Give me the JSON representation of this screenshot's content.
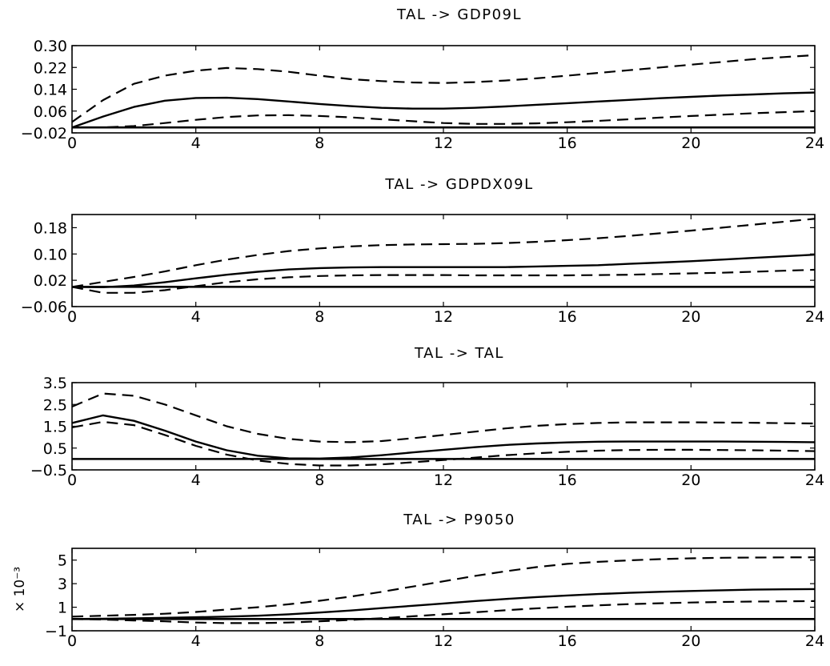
{
  "chart_data": [
    {
      "type": "line",
      "title": "TAL -> GDP09L",
      "x": [
        0,
        1,
        2,
        3,
        4,
        5,
        6,
        7,
        8,
        9,
        10,
        11,
        12,
        13,
        14,
        15,
        16,
        17,
        18,
        19,
        20,
        21,
        22,
        23,
        24
      ],
      "xticks": [
        0,
        4,
        8,
        12,
        16,
        20,
        24
      ],
      "xticklabels": [
        "0",
        "4",
        "8",
        "12",
        "16",
        "20",
        "24"
      ],
      "xlim": [
        0,
        24
      ],
      "yticks": [
        -0.02,
        0.06,
        0.14,
        0.22,
        0.3
      ],
      "yticklabels": [
        "−0.02",
        "0.06",
        "0.14",
        "0.22",
        "0.30"
      ],
      "ylim": [
        -0.02,
        0.3
      ],
      "zero_line": 0,
      "scale_label": "",
      "series": [
        {
          "style": "solid",
          "values": [
            0.0,
            0.04,
            0.075,
            0.098,
            0.108,
            0.109,
            0.104,
            0.095,
            0.086,
            0.078,
            0.072,
            0.069,
            0.069,
            0.072,
            0.077,
            0.083,
            0.089,
            0.095,
            0.101,
            0.107,
            0.112,
            0.117,
            0.121,
            0.125,
            0.128
          ]
        },
        {
          "style": "dashed",
          "values": [
            0.02,
            0.1,
            0.16,
            0.19,
            0.208,
            0.218,
            0.214,
            0.204,
            0.19,
            0.177,
            0.17,
            0.165,
            0.163,
            0.166,
            0.172,
            0.18,
            0.19,
            0.2,
            0.21,
            0.22,
            0.23,
            0.24,
            0.25,
            0.258,
            0.265
          ]
        },
        {
          "style": "dashed",
          "values": [
            0.0,
            0.0,
            0.005,
            0.016,
            0.028,
            0.038,
            0.044,
            0.045,
            0.042,
            0.037,
            0.03,
            0.023,
            0.016,
            0.013,
            0.013,
            0.015,
            0.019,
            0.024,
            0.03,
            0.036,
            0.042,
            0.047,
            0.052,
            0.056,
            0.06
          ]
        }
      ]
    },
    {
      "type": "line",
      "title": "TAL -> GDPDX09L",
      "x": [
        0,
        1,
        2,
        3,
        4,
        5,
        6,
        7,
        8,
        9,
        10,
        11,
        12,
        13,
        14,
        15,
        16,
        17,
        18,
        19,
        20,
        21,
        22,
        23,
        24
      ],
      "xticks": [
        0,
        4,
        8,
        12,
        16,
        20,
        24
      ],
      "xticklabels": [
        "0",
        "4",
        "8",
        "12",
        "16",
        "20",
        "24"
      ],
      "xlim": [
        0,
        24
      ],
      "yticks": [
        -0.06,
        0.02,
        0.1,
        0.18
      ],
      "yticklabels": [
        "−0.06",
        "0.02",
        "0.10",
        "0.18"
      ],
      "ylim": [
        -0.06,
        0.22
      ],
      "zero_line": 0,
      "scale_label": "",
      "series": [
        {
          "style": "solid",
          "values": [
            0.0,
            -0.001,
            0.004,
            0.014,
            0.026,
            0.037,
            0.046,
            0.053,
            0.057,
            0.059,
            0.06,
            0.06,
            0.06,
            0.06,
            0.06,
            0.062,
            0.064,
            0.066,
            0.07,
            0.074,
            0.078,
            0.083,
            0.088,
            0.093,
            0.098
          ]
        },
        {
          "style": "dashed",
          "values": [
            0.0,
            0.015,
            0.03,
            0.047,
            0.066,
            0.083,
            0.097,
            0.109,
            0.117,
            0.123,
            0.127,
            0.129,
            0.13,
            0.131,
            0.133,
            0.137,
            0.142,
            0.148,
            0.155,
            0.163,
            0.171,
            0.18,
            0.189,
            0.198,
            0.207
          ]
        },
        {
          "style": "dashed",
          "values": [
            0.0,
            -0.018,
            -0.018,
            -0.01,
            0.002,
            0.014,
            0.023,
            0.029,
            0.033,
            0.035,
            0.036,
            0.036,
            0.036,
            0.035,
            0.035,
            0.035,
            0.035,
            0.036,
            0.037,
            0.039,
            0.041,
            0.043,
            0.046,
            0.049,
            0.052
          ]
        }
      ]
    },
    {
      "type": "line",
      "title": "TAL -> TAL",
      "x": [
        0,
        1,
        2,
        3,
        4,
        5,
        6,
        7,
        8,
        9,
        10,
        11,
        12,
        13,
        14,
        15,
        16,
        17,
        18,
        19,
        20,
        21,
        22,
        23,
        24
      ],
      "xticks": [
        0,
        4,
        8,
        12,
        16,
        20,
        24
      ],
      "xticklabels": [
        "0",
        "4",
        "8",
        "12",
        "16",
        "20",
        "24"
      ],
      "xlim": [
        0,
        24
      ],
      "yticks": [
        -0.5,
        0.5,
        1.5,
        2.5,
        3.5
      ],
      "yticklabels": [
        "−0.5",
        "0.5",
        "1.5",
        "2.5",
        "3.5"
      ],
      "ylim": [
        -0.5,
        3.5
      ],
      "zero_line": 0,
      "scale_label": "",
      "series": [
        {
          "style": "solid",
          "values": [
            1.65,
            2.0,
            1.75,
            1.3,
            0.8,
            0.4,
            0.15,
            0.03,
            0.02,
            0.07,
            0.17,
            0.3,
            0.42,
            0.54,
            0.64,
            0.71,
            0.76,
            0.79,
            0.8,
            0.8,
            0.8,
            0.8,
            0.79,
            0.78,
            0.77
          ]
        },
        {
          "style": "dashed",
          "values": [
            2.4,
            3.0,
            2.9,
            2.5,
            2.0,
            1.5,
            1.15,
            0.92,
            0.8,
            0.77,
            0.82,
            0.95,
            1.1,
            1.25,
            1.4,
            1.52,
            1.6,
            1.65,
            1.68,
            1.68,
            1.68,
            1.67,
            1.66,
            1.64,
            1.63
          ]
        },
        {
          "style": "dashed",
          "values": [
            1.45,
            1.7,
            1.55,
            1.1,
            0.6,
            0.2,
            -0.07,
            -0.23,
            -0.3,
            -0.3,
            -0.25,
            -0.15,
            -0.05,
            0.06,
            0.17,
            0.26,
            0.33,
            0.38,
            0.41,
            0.42,
            0.42,
            0.41,
            0.4,
            0.38,
            0.36
          ]
        }
      ]
    },
    {
      "type": "line",
      "title": "TAL -> P9050",
      "x": [
        0,
        1,
        2,
        3,
        4,
        5,
        6,
        7,
        8,
        9,
        10,
        11,
        12,
        13,
        14,
        15,
        16,
        17,
        18,
        19,
        20,
        21,
        22,
        23,
        24
      ],
      "xticks": [
        0,
        4,
        8,
        12,
        16,
        20,
        24
      ],
      "xticklabels": [
        "0",
        "4",
        "8",
        "12",
        "16",
        "20",
        "24"
      ],
      "xlim": [
        0,
        24
      ],
      "yticks": [
        -1,
        1,
        3,
        5
      ],
      "yticklabels": [
        "−1",
        "1",
        "3",
        "5"
      ],
      "ylim": [
        -1,
        6
      ],
      "zero_line": 0,
      "scale_label": "× 10⁻³",
      "series": [
        {
          "style": "solid",
          "values": [
            0.0,
            0.02,
            0.05,
            0.1,
            0.15,
            0.2,
            0.28,
            0.4,
            0.55,
            0.72,
            0.92,
            1.12,
            1.32,
            1.52,
            1.7,
            1.86,
            2.0,
            2.12,
            2.22,
            2.31,
            2.38,
            2.44,
            2.49,
            2.52,
            2.54
          ]
        },
        {
          "style": "dashed",
          "values": [
            0.2,
            0.28,
            0.35,
            0.45,
            0.6,
            0.8,
            1.0,
            1.25,
            1.55,
            1.9,
            2.3,
            2.75,
            3.2,
            3.65,
            4.05,
            4.4,
            4.68,
            4.85,
            4.98,
            5.08,
            5.15,
            5.2,
            5.22,
            5.23,
            5.24
          ]
        },
        {
          "style": "dashed",
          "values": [
            0.0,
            -0.05,
            -0.12,
            -0.2,
            -0.3,
            -0.35,
            -0.35,
            -0.3,
            -0.2,
            -0.08,
            0.07,
            0.23,
            0.4,
            0.57,
            0.74,
            0.9,
            1.04,
            1.16,
            1.26,
            1.34,
            1.4,
            1.45,
            1.48,
            1.5,
            1.52
          ]
        }
      ]
    }
  ]
}
